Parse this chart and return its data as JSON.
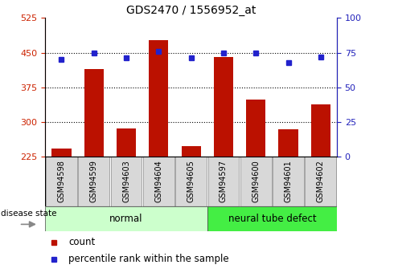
{
  "title": "GDS2470 / 1556952_at",
  "samples": [
    "GSM94598",
    "GSM94599",
    "GSM94603",
    "GSM94604",
    "GSM94605",
    "GSM94597",
    "GSM94600",
    "GSM94601",
    "GSM94602"
  ],
  "count_values": [
    242,
    415,
    285,
    477,
    248,
    440,
    348,
    284,
    338
  ],
  "percentile_values": [
    70,
    75,
    71,
    76,
    71,
    75,
    75,
    68,
    72
  ],
  "groups": [
    {
      "label": "normal",
      "span": [
        0,
        4
      ],
      "color": "#ccffcc"
    },
    {
      "label": "neural tube defect",
      "span": [
        5,
        8
      ],
      "color": "#44ee44"
    }
  ],
  "bar_color": "#bb1100",
  "dot_color": "#2222cc",
  "left_ylim": [
    225,
    525
  ],
  "right_ylim": [
    0,
    100
  ],
  "left_yticks": [
    225,
    300,
    375,
    450,
    525
  ],
  "right_yticks": [
    0,
    25,
    50,
    75,
    100
  ],
  "left_tick_color": "#cc2200",
  "right_tick_color": "#2222bb",
  "grid_values": [
    300,
    375,
    450
  ],
  "legend_count_label": "count",
  "legend_pct_label": "percentile rank within the sample",
  "disease_state_label": "disease state",
  "figsize": [
    4.9,
    3.45
  ],
  "dpi": 100
}
